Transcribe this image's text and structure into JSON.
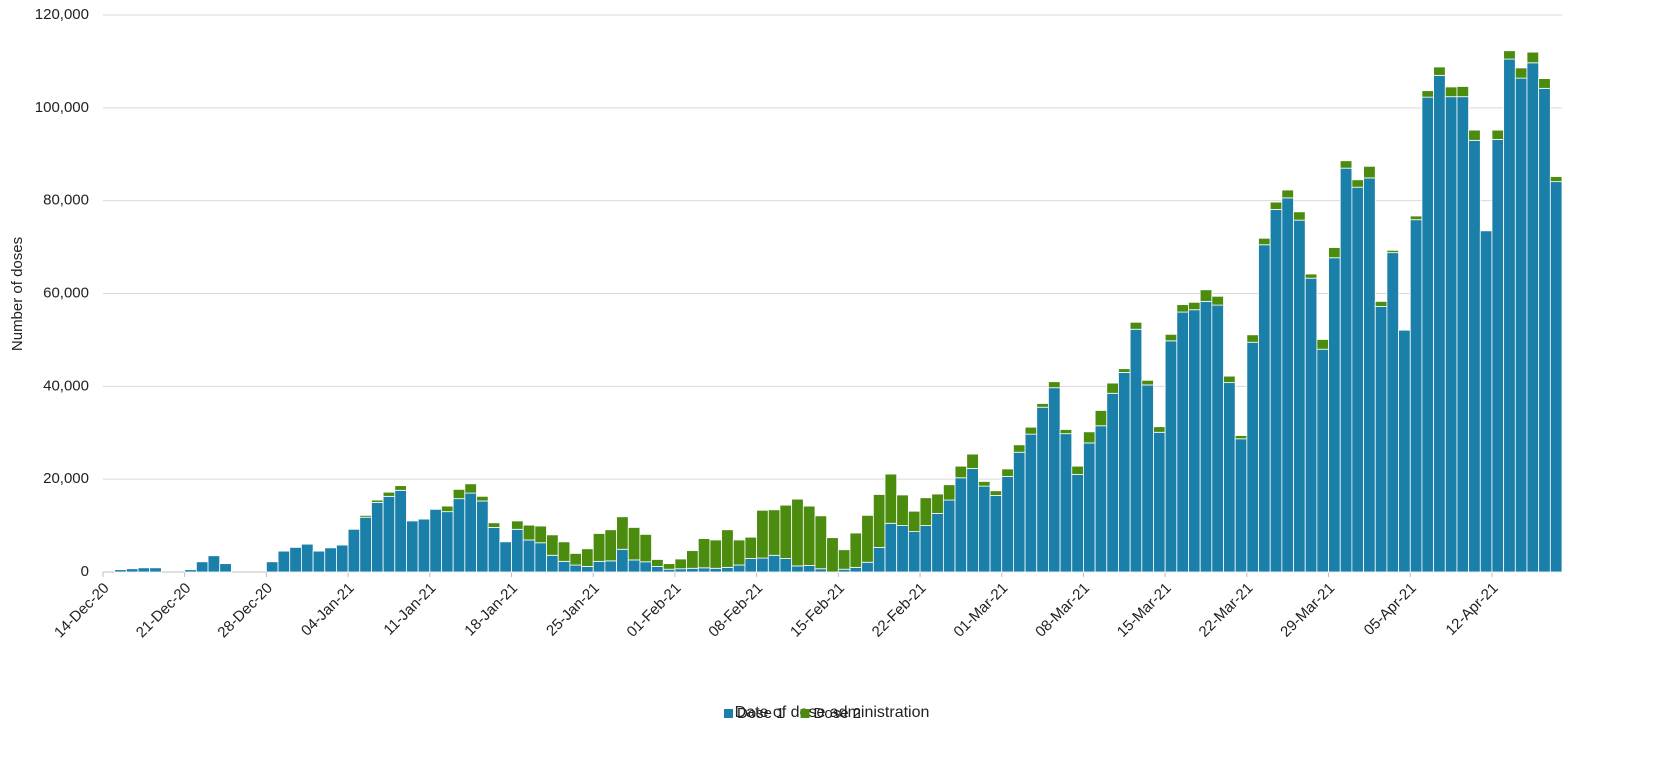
{
  "chart_data": {
    "type": "stacked-bar",
    "y_label": "Number of doses",
    "x_label": "Date of dose administration",
    "categories": [
      "14-Dec-20",
      null,
      null,
      null,
      null,
      null,
      null,
      "21-Dec-20",
      null,
      null,
      null,
      null,
      null,
      null,
      "28-Dec-20",
      null,
      null,
      null,
      null,
      null,
      null,
      "04-Jan-21",
      null,
      null,
      null,
      null,
      null,
      null,
      "11-Jan-21",
      null,
      null,
      null,
      null,
      null,
      null,
      "18-Jan-21",
      null,
      null,
      null,
      null,
      null,
      null,
      "25-Jan-21",
      null,
      null,
      null,
      null,
      null,
      null,
      "01-Feb-21",
      null,
      null,
      null,
      null,
      null,
      null,
      "08-Feb-21",
      null,
      null,
      null,
      null,
      null,
      null,
      "15-Feb-21",
      null,
      null,
      null,
      null,
      null,
      null,
      "22-Feb-21",
      null,
      null,
      null,
      null,
      null,
      null,
      "01-Mar-21",
      null,
      null,
      null,
      null,
      null,
      null,
      "08-Mar-21",
      null,
      null,
      null,
      null,
      null,
      null,
      "15-Mar-21",
      null,
      null,
      null,
      null,
      null,
      null,
      "22-Mar-21",
      null,
      null,
      null,
      null,
      null,
      null,
      "29-Mar-21",
      null,
      null,
      null,
      null,
      null,
      null,
      "05-Apr-21",
      null,
      null,
      null,
      null,
      null,
      null,
      "12-Apr-21",
      null,
      null,
      null,
      null,
      null
    ],
    "series": [
      {
        "name": "Dose 1",
        "color": "#1a7fa9",
        "values": [
          0,
          500,
          700,
          900,
          900,
          0,
          0,
          500,
          2200,
          3500,
          1800,
          0,
          0,
          0,
          2200,
          4500,
          5300,
          6000,
          4500,
          5200,
          5800,
          9200,
          11800,
          15000,
          16300,
          17600,
          11000,
          11400,
          13500,
          13000,
          15800,
          17000,
          15300,
          9600,
          6500,
          9200,
          6900,
          6300,
          3600,
          2300,
          1500,
          1200,
          2300,
          2400,
          4900,
          2600,
          2200,
          1200,
          600,
          700,
          800,
          900,
          800,
          1000,
          1500,
          2900,
          3000,
          3600,
          2900,
          1300,
          1400,
          700,
          0,
          600,
          1000,
          2100,
          5300,
          10500,
          10000,
          8700,
          10000,
          12600,
          15500,
          20300,
          22300,
          18500,
          16500,
          20600,
          25800,
          29700,
          35500,
          39700,
          29800,
          21000,
          27800,
          31500,
          38500,
          43000,
          52300,
          40300,
          30100,
          49800,
          56000,
          56500,
          58300,
          57500,
          40800,
          28700,
          49500,
          70500,
          78100,
          80600,
          75800,
          63300,
          48000,
          67700,
          87000,
          82900,
          84900,
          57200,
          68800,
          52100,
          75900,
          102300,
          107000,
          102400,
          102400,
          93000,
          73500,
          93200,
          110500,
          106400,
          109700,
          104200,
          84100
        ]
      },
      {
        "name": "Dose 2",
        "color": "#4b8c0e",
        "values": [
          0,
          0,
          0,
          0,
          0,
          0,
          0,
          0,
          0,
          0,
          0,
          0,
          0,
          0,
          0,
          0,
          0,
          0,
          0,
          0,
          0,
          0,
          400,
          500,
          900,
          1000,
          0,
          0,
          0,
          1200,
          2000,
          2000,
          1000,
          1000,
          0,
          1800,
          3200,
          3600,
          4400,
          4200,
          2500,
          3800,
          6000,
          6700,
          7000,
          7000,
          5900,
          1500,
          1200,
          2100,
          3800,
          6300,
          6100,
          8100,
          5400,
          4600,
          10300,
          9800,
          11500,
          14400,
          12800,
          11400,
          7400,
          4200,
          7400,
          10100,
          11400,
          10600,
          6600,
          4400,
          6000,
          4200,
          3300,
          2500,
          3100,
          1000,
          1000,
          1600,
          1600,
          1500,
          800,
          1300,
          900,
          1800,
          2400,
          3300,
          2200,
          800,
          1500,
          1000,
          1200,
          1400,
          1600,
          1600,
          2500,
          1900,
          1400,
          700,
          1600,
          1400,
          1600,
          1700,
          1800,
          900,
          2100,
          2200,
          1600,
          1600,
          2500,
          1100,
          500,
          0,
          800,
          1400,
          1800,
          2100,
          2200,
          2200,
          0,
          2000,
          1800,
          2200,
          2300,
          2100,
          1100
        ]
      }
    ],
    "ylim": [
      0,
      120000
    ],
    "yticks": [
      0,
      {
        "value": 20000,
        "label": "20,000"
      },
      {
        "value": 40000,
        "label": "40,000"
      },
      {
        "value": 60000,
        "label": "60,000"
      },
      {
        "value": 80000,
        "label": "80,000"
      },
      {
        "value": 100000,
        "label": "100,000"
      },
      {
        "value": 120000,
        "label": "120,000"
      }
    ],
    "grid": true,
    "legend": "bottom"
  }
}
